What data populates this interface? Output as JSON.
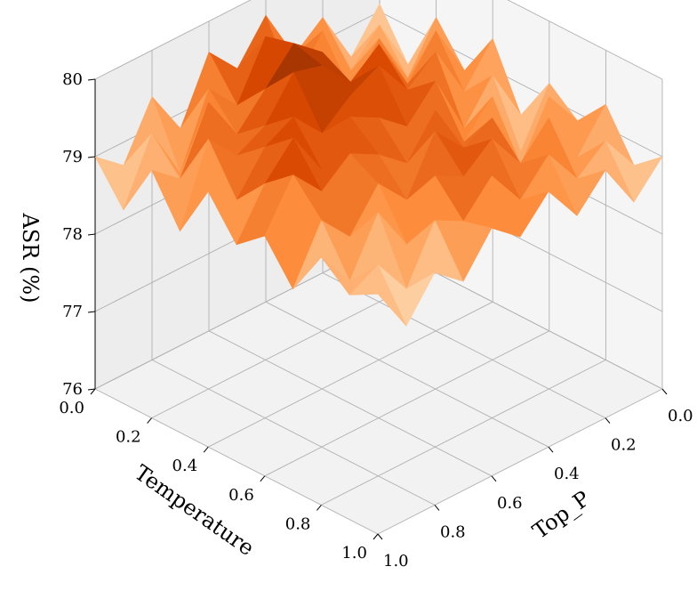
{
  "chart_data": {
    "type": "surface3d",
    "xlabel": "Temperature",
    "ylabel": "Top_P",
    "zlabel": "ASR (%)",
    "x_ticks": [
      "0.0",
      "0.2",
      "0.4",
      "0.6",
      "0.8",
      "1.0"
    ],
    "y_ticks": [
      "0.0",
      "0.2",
      "0.4",
      "0.6",
      "0.8",
      "1.0"
    ],
    "z_ticks": [
      "76",
      "77",
      "78",
      "79",
      "80"
    ],
    "xlim": [
      0,
      1
    ],
    "ylim": [
      0,
      1
    ],
    "zlim": [
      76,
      80
    ],
    "grid": true,
    "colormap": "Oranges",
    "x": [
      0.0,
      0.1,
      0.2,
      0.3,
      0.4,
      0.5,
      0.6,
      0.7,
      0.8,
      0.9,
      1.0
    ],
    "y": [
      0.0,
      0.1,
      0.2,
      0.3,
      0.4,
      0.5,
      0.6,
      0.7,
      0.8,
      0.9,
      1.0
    ],
    "z": [
      [
        79.1,
        78.6,
        79.3,
        79.0,
        79.7,
        79.2,
        79.6,
        78.8,
        79.4,
        78.7,
        79.0
      ],
      [
        78.5,
        79.2,
        78.8,
        79.5,
        78.9,
        79.8,
        79.1,
        79.5,
        78.6,
        79.3,
        78.5
      ],
      [
        79.3,
        78.7,
        79.4,
        78.9,
        79.6,
        79.9,
        79.5,
        79.1,
        79.7,
        78.9,
        79.2
      ],
      [
        78.8,
        79.5,
        79.0,
        79.7,
        79.4,
        79.8,
        79.9,
        79.4,
        79.2,
        79.6,
        78.6
      ],
      [
        79.4,
        78.9,
        79.6,
        79.3,
        79.8,
        79.6,
        79.3,
        79.7,
        79.5,
        79.0,
        79.3
      ],
      [
        78.6,
        79.3,
        78.8,
        79.6,
        79.2,
        79.5,
        79.7,
        79.2,
        79.8,
        79.4,
        78.8
      ],
      [
        79.2,
        78.5,
        79.4,
        79.0,
        79.6,
        79.1,
        79.4,
        79.6,
        79.3,
        79.7,
        79.1
      ],
      [
        78.9,
        79.4,
        78.7,
        79.5,
        79.3,
        79.7,
        79.0,
        79.4,
        78.9,
        79.3,
        78.6
      ],
      [
        79.3,
        78.8,
        79.5,
        79.1,
        79.6,
        79.3,
        79.5,
        78.8,
        79.4,
        78.7,
        79.2
      ],
      [
        78.7,
        79.2,
        78.9,
        79.4,
        79.0,
        79.5,
        79.1,
        79.3,
        78.6,
        79.1,
        78.9
      ],
      [
        79.0,
        78.6,
        79.2,
        78.8,
        79.3,
        78.9,
        79.2,
        78.7,
        79.0,
        78.5,
        79.1
      ]
    ]
  }
}
